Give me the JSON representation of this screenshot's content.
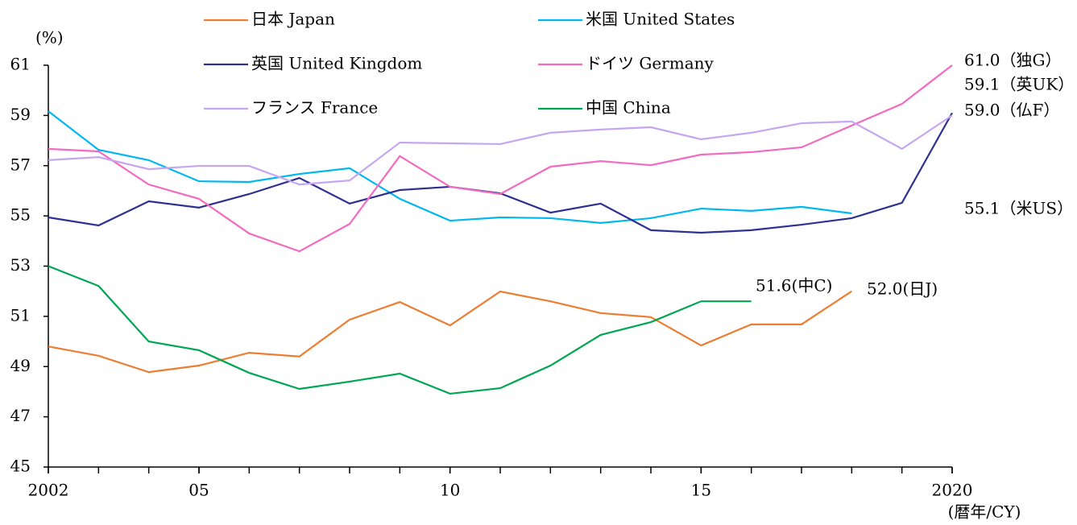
{
  "chart_data": {
    "type": "line",
    "y_unit_label": "(%)",
    "x_axis_label": "(暦年/CY)",
    "x": [
      2002,
      2003,
      2004,
      2005,
      2006,
      2007,
      2008,
      2009,
      2010,
      2011,
      2012,
      2013,
      2014,
      2015,
      2016,
      2017,
      2018,
      2019,
      2020
    ],
    "xlim": [
      2002,
      2020
    ],
    "xticks": [
      2002,
      {
        "value": 2005,
        "label": "05"
      },
      {
        "value": 2010,
        "label": "10"
      },
      {
        "value": 2015,
        "label": "15"
      },
      2020
    ],
    "ylim": [
      45,
      61
    ],
    "yticks": [
      45,
      47,
      49,
      51,
      53,
      55,
      57,
      59,
      61
    ],
    "grid": false,
    "series": [
      {
        "name": "日本 Japan",
        "color": "#ed7d31",
        "values": [
          49.8,
          49.43,
          48.78,
          49.04,
          49.55,
          49.4,
          50.87,
          51.57,
          50.64,
          51.99,
          51.6,
          51.13,
          50.97,
          49.84,
          50.68,
          50.68,
          52.0,
          null,
          null
        ]
      },
      {
        "name": "米国 United States",
        "color": "#00b7f1",
        "values": [
          59.17,
          57.63,
          57.22,
          56.38,
          56.35,
          56.67,
          56.9,
          55.68,
          54.81,
          54.94,
          54.91,
          54.72,
          54.91,
          55.29,
          55.2,
          55.36,
          55.1,
          null,
          null
        ]
      },
      {
        "name": "英国 United Kingdom",
        "color": "#2e3192",
        "values": [
          54.94,
          54.62,
          55.58,
          55.33,
          55.87,
          56.51,
          55.49,
          56.03,
          56.16,
          55.9,
          55.13,
          55.49,
          54.43,
          54.33,
          54.43,
          54.65,
          54.91,
          55.52,
          59.1
        ]
      },
      {
        "name": "ドイツ Germany",
        "color": "#f26bc0",
        "values": [
          57.67,
          57.57,
          56.25,
          55.68,
          54.3,
          53.59,
          54.68,
          57.38,
          56.16,
          55.87,
          56.96,
          57.18,
          57.02,
          57.44,
          57.54,
          57.73,
          58.6,
          59.46,
          61.0
        ]
      },
      {
        "name": "フランス France",
        "color": "#c6a6f0",
        "values": [
          57.22,
          57.34,
          56.86,
          56.99,
          56.99,
          56.25,
          56.41,
          57.92,
          57.89,
          57.86,
          58.31,
          58.44,
          58.53,
          58.05,
          58.31,
          58.69,
          58.76,
          57.67,
          59.0
        ]
      },
      {
        "name": "中国 China",
        "color": "#00a651",
        "values": [
          53.0,
          52.21,
          50.0,
          49.65,
          48.75,
          48.11,
          48.4,
          48.72,
          47.92,
          48.14,
          49.04,
          50.26,
          50.77,
          51.6,
          51.6,
          null,
          null,
          null,
          null
        ]
      }
    ],
    "annotations": [
      "61.0（独G）",
      "59.1（英UK）",
      "59.0（仏F）",
      "55.1（米US）",
      "51.6(中C)",
      "52.0(日J)"
    ]
  }
}
